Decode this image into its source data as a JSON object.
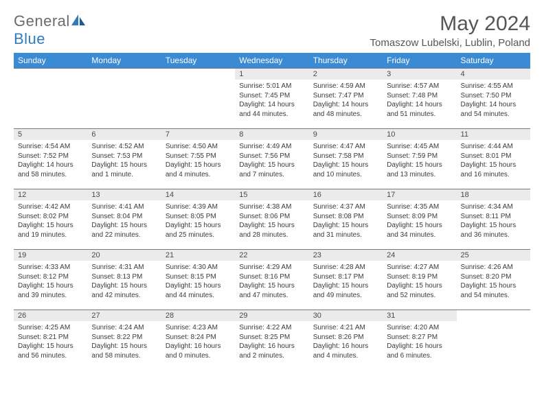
{
  "logo": {
    "part1": "General",
    "part2": "Blue"
  },
  "title": "May 2024",
  "location": "Tomaszow Lubelski, Lublin, Poland",
  "colors": {
    "header_bg": "#3b8bd4",
    "header_text": "#ffffff",
    "daynum_bg": "#ebebeb",
    "cell_border": "#6a7a8a",
    "logo_gray": "#6b6b6b",
    "logo_blue": "#2e7cc0",
    "text": "#3a3a3a"
  },
  "day_names": [
    "Sunday",
    "Monday",
    "Tuesday",
    "Wednesday",
    "Thursday",
    "Friday",
    "Saturday"
  ],
  "weeks": [
    [
      {
        "empty": true
      },
      {
        "empty": true
      },
      {
        "empty": true
      },
      {
        "n": "1",
        "sr": "5:01 AM",
        "ss": "7:45 PM",
        "dl": "14 hours and 44 minutes."
      },
      {
        "n": "2",
        "sr": "4:59 AM",
        "ss": "7:47 PM",
        "dl": "14 hours and 48 minutes."
      },
      {
        "n": "3",
        "sr": "4:57 AM",
        "ss": "7:48 PM",
        "dl": "14 hours and 51 minutes."
      },
      {
        "n": "4",
        "sr": "4:55 AM",
        "ss": "7:50 PM",
        "dl": "14 hours and 54 minutes."
      }
    ],
    [
      {
        "n": "5",
        "sr": "4:54 AM",
        "ss": "7:52 PM",
        "dl": "14 hours and 58 minutes."
      },
      {
        "n": "6",
        "sr": "4:52 AM",
        "ss": "7:53 PM",
        "dl": "15 hours and 1 minute."
      },
      {
        "n": "7",
        "sr": "4:50 AM",
        "ss": "7:55 PM",
        "dl": "15 hours and 4 minutes."
      },
      {
        "n": "8",
        "sr": "4:49 AM",
        "ss": "7:56 PM",
        "dl": "15 hours and 7 minutes."
      },
      {
        "n": "9",
        "sr": "4:47 AM",
        "ss": "7:58 PM",
        "dl": "15 hours and 10 minutes."
      },
      {
        "n": "10",
        "sr": "4:45 AM",
        "ss": "7:59 PM",
        "dl": "15 hours and 13 minutes."
      },
      {
        "n": "11",
        "sr": "4:44 AM",
        "ss": "8:01 PM",
        "dl": "15 hours and 16 minutes."
      }
    ],
    [
      {
        "n": "12",
        "sr": "4:42 AM",
        "ss": "8:02 PM",
        "dl": "15 hours and 19 minutes."
      },
      {
        "n": "13",
        "sr": "4:41 AM",
        "ss": "8:04 PM",
        "dl": "15 hours and 22 minutes."
      },
      {
        "n": "14",
        "sr": "4:39 AM",
        "ss": "8:05 PM",
        "dl": "15 hours and 25 minutes."
      },
      {
        "n": "15",
        "sr": "4:38 AM",
        "ss": "8:06 PM",
        "dl": "15 hours and 28 minutes."
      },
      {
        "n": "16",
        "sr": "4:37 AM",
        "ss": "8:08 PM",
        "dl": "15 hours and 31 minutes."
      },
      {
        "n": "17",
        "sr": "4:35 AM",
        "ss": "8:09 PM",
        "dl": "15 hours and 34 minutes."
      },
      {
        "n": "18",
        "sr": "4:34 AM",
        "ss": "8:11 PM",
        "dl": "15 hours and 36 minutes."
      }
    ],
    [
      {
        "n": "19",
        "sr": "4:33 AM",
        "ss": "8:12 PM",
        "dl": "15 hours and 39 minutes."
      },
      {
        "n": "20",
        "sr": "4:31 AM",
        "ss": "8:13 PM",
        "dl": "15 hours and 42 minutes."
      },
      {
        "n": "21",
        "sr": "4:30 AM",
        "ss": "8:15 PM",
        "dl": "15 hours and 44 minutes."
      },
      {
        "n": "22",
        "sr": "4:29 AM",
        "ss": "8:16 PM",
        "dl": "15 hours and 47 minutes."
      },
      {
        "n": "23",
        "sr": "4:28 AM",
        "ss": "8:17 PM",
        "dl": "15 hours and 49 minutes."
      },
      {
        "n": "24",
        "sr": "4:27 AM",
        "ss": "8:19 PM",
        "dl": "15 hours and 52 minutes."
      },
      {
        "n": "25",
        "sr": "4:26 AM",
        "ss": "8:20 PM",
        "dl": "15 hours and 54 minutes."
      }
    ],
    [
      {
        "n": "26",
        "sr": "4:25 AM",
        "ss": "8:21 PM",
        "dl": "15 hours and 56 minutes."
      },
      {
        "n": "27",
        "sr": "4:24 AM",
        "ss": "8:22 PM",
        "dl": "15 hours and 58 minutes."
      },
      {
        "n": "28",
        "sr": "4:23 AM",
        "ss": "8:24 PM",
        "dl": "16 hours and 0 minutes."
      },
      {
        "n": "29",
        "sr": "4:22 AM",
        "ss": "8:25 PM",
        "dl": "16 hours and 2 minutes."
      },
      {
        "n": "30",
        "sr": "4:21 AM",
        "ss": "8:26 PM",
        "dl": "16 hours and 4 minutes."
      },
      {
        "n": "31",
        "sr": "4:20 AM",
        "ss": "8:27 PM",
        "dl": "16 hours and 6 minutes."
      },
      {
        "empty": true
      }
    ]
  ],
  "labels": {
    "sunrise": "Sunrise:",
    "sunset": "Sunset:",
    "daylight": "Daylight:"
  }
}
